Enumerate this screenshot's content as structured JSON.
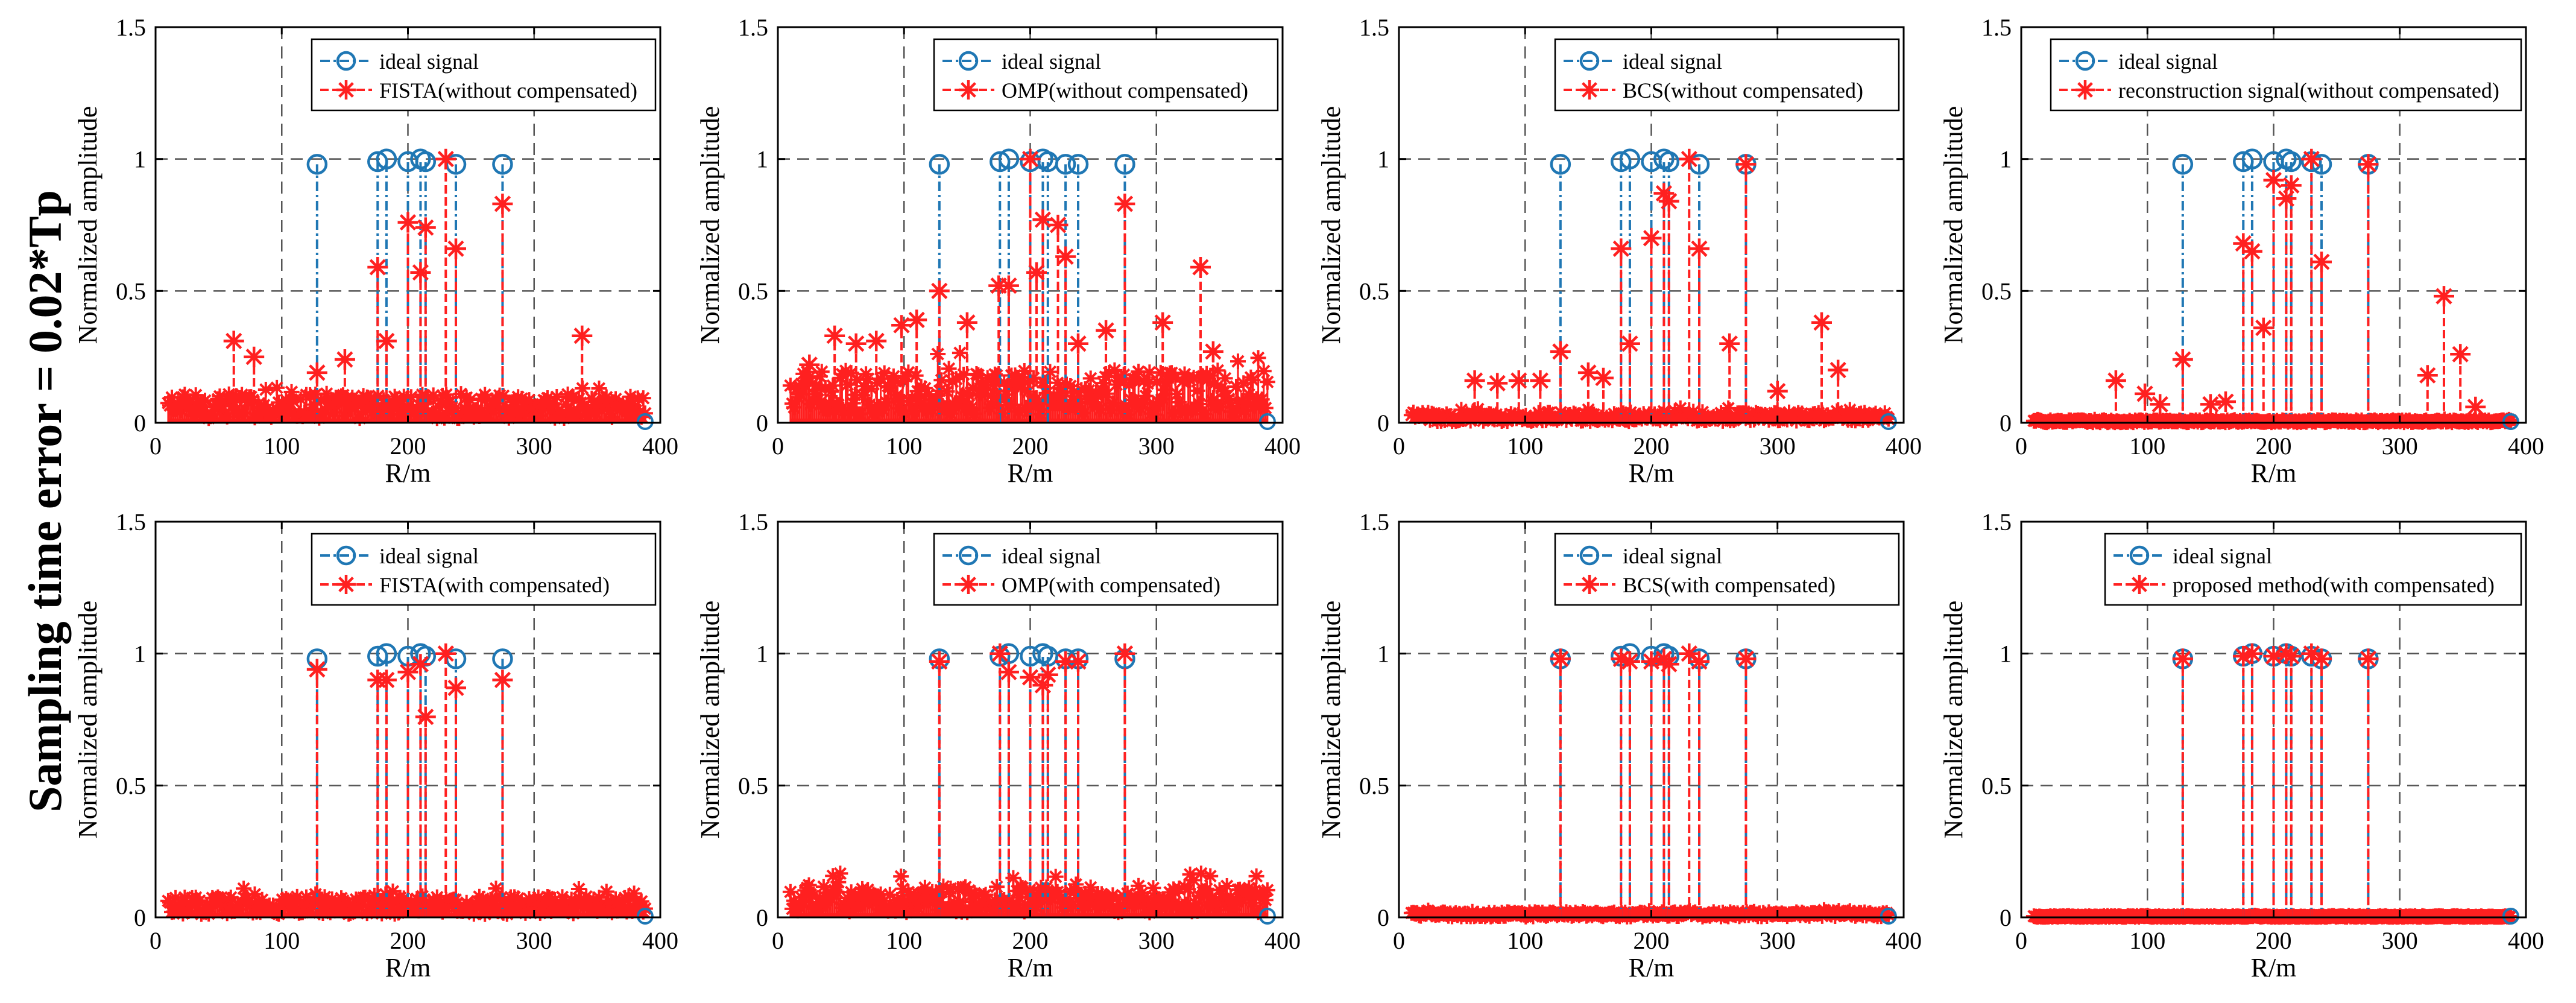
{
  "figure_label": "Sampling time error = 0.02*Tp",
  "colors": {
    "ideal": "#1f77b4",
    "recon": "#ff2020",
    "grid": "#555555",
    "axis": "#000000"
  },
  "chart_data": [
    {
      "type": "stem",
      "xlabel": "R/m",
      "ylabel": "Normalized amplitude",
      "xlim": [
        0,
        400
      ],
      "ylim": [
        0,
        1.5
      ],
      "xticks": [
        "0",
        "100",
        "200",
        "300",
        "400"
      ],
      "yticks": [
        "0",
        "0.5",
        "1",
        "1.5"
      ],
      "grid": true,
      "legend": [
        "ideal signal",
        "FISTA(without compensated)"
      ],
      "ideal": {
        "x": [
          128,
          176,
          183,
          200,
          210,
          214,
          238,
          275
        ],
        "y": [
          0.98,
          0.99,
          1.0,
          0.99,
          1.0,
          0.99,
          0.98,
          0.98
        ]
      },
      "recon": {
        "x": [
          62,
          78,
          128,
          150,
          176,
          183,
          200,
          210,
          214,
          230,
          238,
          275,
          338
        ],
        "y": [
          0.31,
          0.25,
          0.19,
          0.24,
          0.59,
          0.31,
          0.76,
          0.57,
          0.74,
          1.0,
          0.66,
          0.83,
          0.33
        ]
      },
      "noise": {
        "x0": 10,
        "x1": 388,
        "count": 260,
        "level": 0.11
      }
    },
    {
      "type": "stem",
      "xlabel": "R/m",
      "ylabel": "Normalized amplitude",
      "xlim": [
        0,
        400
      ],
      "ylim": [
        0,
        1.5
      ],
      "xticks": [
        "0",
        "100",
        "200",
        "300",
        "400"
      ],
      "yticks": [
        "0",
        "0.5",
        "1",
        "1.5"
      ],
      "grid": true,
      "legend": [
        "ideal signal",
        "OMP(without compensated)"
      ],
      "ideal": {
        "x": [
          128,
          176,
          183,
          200,
          210,
          214,
          228,
          238,
          275
        ],
        "y": [
          0.98,
          0.99,
          1.0,
          0.99,
          1.0,
          0.99,
          0.98,
          0.98,
          0.98
        ]
      },
      "recon": {
        "x": [
          25,
          45,
          62,
          78,
          98,
          110,
          128,
          150,
          175,
          183,
          200,
          205,
          210,
          222,
          228,
          238,
          260,
          275,
          305,
          335,
          345
        ],
        "y": [
          0.22,
          0.33,
          0.3,
          0.31,
          0.37,
          0.39,
          0.5,
          0.38,
          0.52,
          0.52,
          1.0,
          0.57,
          0.77,
          0.75,
          0.63,
          0.3,
          0.35,
          0.83,
          0.38,
          0.59,
          0.27
        ]
      },
      "noise": {
        "x0": 10,
        "x1": 388,
        "count": 260,
        "level": 0.2
      }
    },
    {
      "type": "stem",
      "xlabel": "R/m",
      "ylabel": "Normalized amplitude",
      "xlim": [
        0,
        400
      ],
      "ylim": [
        0,
        1.5
      ],
      "xticks": [
        "0",
        "100",
        "200",
        "300",
        "400"
      ],
      "yticks": [
        "0",
        "0.5",
        "1",
        "1.5"
      ],
      "grid": true,
      "legend": [
        "ideal signal",
        "BCS(without compensated)"
      ],
      "ideal": {
        "x": [
          128,
          176,
          183,
          200,
          210,
          214,
          238,
          275
        ],
        "y": [
          0.98,
          0.99,
          1.0,
          0.99,
          1.0,
          0.99,
          0.98,
          0.98
        ]
      },
      "recon": {
        "x": [
          60,
          78,
          95,
          112,
          128,
          150,
          162,
          176,
          183,
          200,
          210,
          214,
          230,
          238,
          262,
          275,
          300,
          335,
          348
        ],
        "y": [
          0.16,
          0.15,
          0.16,
          0.16,
          0.27,
          0.19,
          0.17,
          0.66,
          0.3,
          0.7,
          0.87,
          0.84,
          1.0,
          0.66,
          0.3,
          0.98,
          0.12,
          0.38,
          0.2
        ]
      },
      "noise": {
        "x0": 10,
        "x1": 388,
        "count": 260,
        "level": 0.04
      }
    },
    {
      "type": "stem",
      "xlabel": "R/m",
      "ylabel": "Normalized amplitude",
      "xlim": [
        0,
        400
      ],
      "ylim": [
        0,
        1.5
      ],
      "xticks": [
        "0",
        "100",
        "200",
        "300",
        "400"
      ],
      "yticks": [
        "0",
        "0.5",
        "1",
        "1.5"
      ],
      "grid": true,
      "legend": [
        "ideal signal",
        "reconstruction signal(without compensated)"
      ],
      "ideal": {
        "x": [
          128,
          176,
          183,
          200,
          210,
          214,
          230,
          238,
          275
        ],
        "y": [
          0.98,
          0.99,
          1.0,
          0.99,
          1.0,
          0.99,
          0.99,
          0.98,
          0.98
        ]
      },
      "recon": {
        "x": [
          75,
          98,
          110,
          128,
          150,
          162,
          176,
          183,
          192,
          200,
          210,
          214,
          230,
          238,
          275,
          322,
          335,
          348,
          360
        ],
        "y": [
          0.16,
          0.11,
          0.07,
          0.24,
          0.07,
          0.08,
          0.68,
          0.65,
          0.36,
          0.92,
          0.85,
          0.9,
          1.0,
          0.61,
          0.98,
          0.18,
          0.48,
          0.26,
          0.06
        ]
      },
      "noise": {
        "x0": 10,
        "x1": 388,
        "count": 260,
        "level": 0.01
      }
    },
    {
      "type": "stem",
      "xlabel": "R/m",
      "ylabel": "Normalized amplitude",
      "xlim": [
        0,
        400
      ],
      "ylim": [
        0,
        1.5
      ],
      "xticks": [
        "0",
        "100",
        "200",
        "300",
        "400"
      ],
      "yticks": [
        "0",
        "0.5",
        "1",
        "1.5"
      ],
      "grid": true,
      "legend": [
        "ideal signal",
        "FISTA(with compensated)"
      ],
      "ideal": {
        "x": [
          128,
          176,
          183,
          200,
          210,
          214,
          238,
          275
        ],
        "y": [
          0.98,
          0.99,
          1.0,
          0.99,
          1.0,
          0.99,
          0.98,
          0.98
        ]
      },
      "recon": {
        "x": [
          128,
          176,
          183,
          200,
          210,
          214,
          230,
          238,
          275
        ],
        "y": [
          0.94,
          0.9,
          0.9,
          0.93,
          0.96,
          0.76,
          1.0,
          0.87,
          0.9
        ]
      },
      "noise": {
        "x0": 10,
        "x1": 388,
        "count": 260,
        "level": 0.08
      }
    },
    {
      "type": "stem",
      "xlabel": "R/m",
      "ylabel": "Normalized amplitude",
      "xlim": [
        0,
        400
      ],
      "ylim": [
        0,
        1.5
      ],
      "xticks": [
        "0",
        "100",
        "200",
        "300",
        "400"
      ],
      "yticks": [
        "0",
        "0.5",
        "1",
        "1.5"
      ],
      "grid": true,
      "legend": [
        "ideal signal",
        "OMP(with compensated)"
      ],
      "ideal": {
        "x": [
          128,
          176,
          183,
          200,
          210,
          214,
          228,
          238,
          275
        ],
        "y": [
          0.98,
          0.99,
          1.0,
          0.99,
          1.0,
          0.99,
          0.98,
          0.98,
          0.98
        ]
      },
      "recon": {
        "x": [
          128,
          176,
          183,
          200,
          210,
          214,
          228,
          238,
          275
        ],
        "y": [
          0.97,
          1.0,
          0.93,
          0.91,
          0.88,
          0.92,
          0.97,
          0.97,
          1.0
        ]
      },
      "noise": {
        "x0": 10,
        "x1": 388,
        "count": 260,
        "level": 0.12
      }
    },
    {
      "type": "stem",
      "xlabel": "R/m",
      "ylabel": "Normalized amplitude",
      "xlim": [
        0,
        400
      ],
      "ylim": [
        0,
        1.5
      ],
      "xticks": [
        "0",
        "100",
        "200",
        "300",
        "400"
      ],
      "yticks": [
        "0",
        "0.5",
        "1",
        "1.5"
      ],
      "grid": true,
      "legend": [
        "ideal signal",
        "BCS(with compensated)"
      ],
      "ideal": {
        "x": [
          128,
          176,
          183,
          200,
          210,
          214,
          238,
          275
        ],
        "y": [
          0.98,
          0.99,
          1.0,
          0.99,
          1.0,
          0.99,
          0.98,
          0.98
        ]
      },
      "recon": {
        "x": [
          128,
          176,
          183,
          200,
          210,
          214,
          230,
          238,
          275
        ],
        "y": [
          0.98,
          0.98,
          0.97,
          0.97,
          0.98,
          0.96,
          1.0,
          0.97,
          0.98
        ]
      },
      "noise": {
        "x0": 10,
        "x1": 388,
        "count": 260,
        "level": 0.02
      }
    },
    {
      "type": "stem",
      "xlabel": "R/m",
      "ylabel": "Normalized amplitude",
      "xlim": [
        0,
        400
      ],
      "ylim": [
        0,
        1.5
      ],
      "xticks": [
        "0",
        "100",
        "200",
        "300",
        "400"
      ],
      "yticks": [
        "0",
        "0.5",
        "1",
        "1.5"
      ],
      "grid": true,
      "legend": [
        "ideal signal",
        "proposed method(with compensated)"
      ],
      "ideal": {
        "x": [
          128,
          176,
          183,
          200,
          210,
          214,
          230,
          238,
          275
        ],
        "y": [
          0.98,
          0.99,
          1.0,
          0.99,
          1.0,
          0.99,
          0.99,
          0.98,
          0.98
        ]
      },
      "recon": {
        "x": [
          128,
          176,
          183,
          200,
          210,
          214,
          230,
          238,
          275
        ],
        "y": [
          0.98,
          0.99,
          1.0,
          0.99,
          1.0,
          0.99,
          1.0,
          0.98,
          0.98
        ]
      },
      "noise": {
        "x0": 10,
        "x1": 388,
        "count": 260,
        "level": 0.005
      }
    }
  ]
}
